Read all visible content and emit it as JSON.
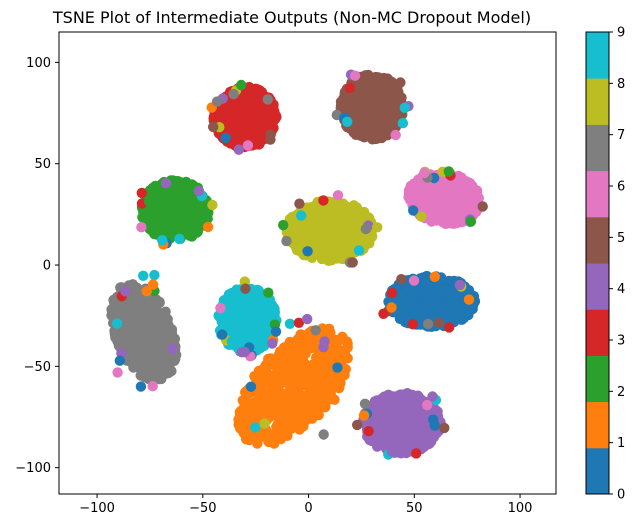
{
  "chart_data": {
    "type": "scatter",
    "title": "TSNE Plot of Intermediate Outputs (Non-MC Dropout Model)",
    "xlabel": "",
    "ylabel": "",
    "xlim": [
      -118,
      117
    ],
    "ylim": [
      -113,
      115
    ],
    "x_ticks": [
      {
        "value": -100,
        "label": "−100"
      },
      {
        "value": -50,
        "label": "−50"
      },
      {
        "value": 0,
        "label": "0"
      },
      {
        "value": 50,
        "label": "50"
      },
      {
        "value": 100,
        "label": "100"
      }
    ],
    "y_ticks": [
      {
        "value": -100,
        "label": "−100"
      },
      {
        "value": -50,
        "label": "−50"
      },
      {
        "value": 0,
        "label": "0"
      },
      {
        "value": 50,
        "label": "50"
      },
      {
        "value": 100,
        "label": "100"
      }
    ],
    "grid": false,
    "legend": "none",
    "colorbar": {
      "range": [
        0,
        9
      ],
      "tick_labels": [
        "0",
        "1",
        "2",
        "3",
        "4",
        "5",
        "6",
        "7",
        "8",
        "9"
      ],
      "colors": [
        "#1f77b4",
        "#ff7f0e",
        "#2ca02c",
        "#d62728",
        "#9467bd",
        "#8c564b",
        "#e377c2",
        "#7f7f7f",
        "#bcbd22",
        "#17becf"
      ]
    },
    "clusters": [
      {
        "label": 0,
        "center": [
          58,
          -18
        ],
        "spread": [
          18,
          11
        ],
        "angle": 0,
        "color": "#1f77b4"
      },
      {
        "label": 1,
        "center": [
          -7,
          -60
        ],
        "spread": [
          16,
          30
        ],
        "angle": -40,
        "color": "#ff7f0e"
      },
      {
        "label": 2,
        "center": [
          -63,
          27
        ],
        "spread": [
          14,
          13
        ],
        "angle": 0,
        "color": "#2ca02c"
      },
      {
        "label": 3,
        "center": [
          -30,
          73
        ],
        "spread": [
          13,
          13
        ],
        "angle": 0,
        "color": "#d62728"
      },
      {
        "label": 4,
        "center": [
          44,
          -78
        ],
        "spread": [
          16,
          13
        ],
        "angle": 0,
        "color": "#9467bd"
      },
      {
        "label": 5,
        "center": [
          30,
          78
        ],
        "spread": [
          13,
          14
        ],
        "angle": 0,
        "color": "#8c564b"
      },
      {
        "label": 6,
        "center": [
          64,
          33
        ],
        "spread": [
          15,
          11
        ],
        "angle": -10,
        "color": "#e377c2"
      },
      {
        "label": 7,
        "center": [
          -78,
          -33
        ],
        "spread": [
          12,
          22
        ],
        "angle": 20,
        "color": "#7f7f7f"
      },
      {
        "label": 8,
        "center": [
          10,
          17
        ],
        "spread": [
          18,
          13
        ],
        "angle": 0,
        "color": "#bcbd22"
      },
      {
        "label": 9,
        "center": [
          -29,
          -27
        ],
        "spread": [
          12,
          14
        ],
        "angle": 0,
        "color": "#17becf"
      }
    ]
  }
}
